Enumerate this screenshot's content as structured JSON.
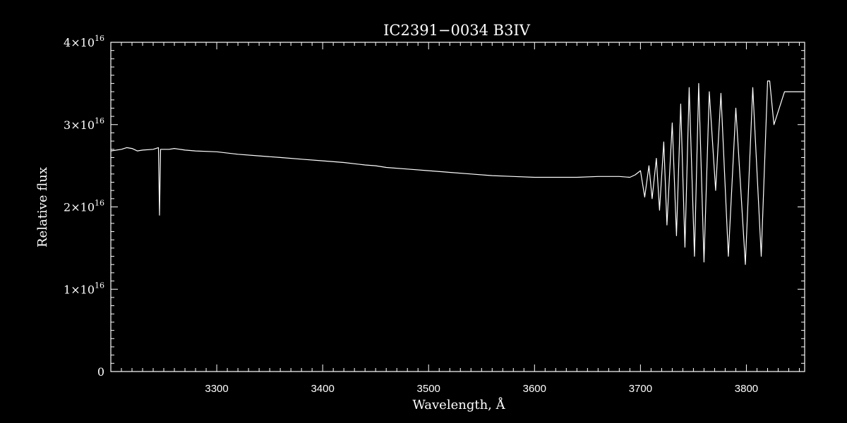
{
  "chart_data": {
    "type": "line",
    "title": "IC2391−0034   B3IV",
    "xlabel": "Wavelength, Å",
    "ylabel": "Relative flux",
    "xlim": [
      3200,
      3855
    ],
    "ylim": [
      0,
      4e+16
    ],
    "x_ticks": [
      3300,
      3400,
      3500,
      3600,
      3700,
      3800
    ],
    "x_tick_labels": [
      "3300",
      "3400",
      "3500",
      "3600",
      "3700",
      "3800"
    ],
    "y_ticks": [
      0,
      1e+16,
      2e+16,
      3e+16,
      4e+16
    ],
    "y_tick_labels": [
      {
        "mantissa": "0",
        "exp": ""
      },
      {
        "mantissa": "1×10",
        "exp": "16"
      },
      {
        "mantissa": "2×10",
        "exp": "16"
      },
      {
        "mantissa": "3×10",
        "exp": "16"
      },
      {
        "mantissa": "4×10",
        "exp": "16"
      }
    ],
    "grid": false,
    "colors": {
      "background": "#000000",
      "foreground": "#ffffff"
    },
    "series": [
      {
        "x": [
          3200,
          3210,
          3215,
          3220,
          3225,
          3230,
          3240,
          3245,
          3246,
          3247,
          3255,
          3260,
          3270,
          3280,
          3300,
          3320,
          3340,
          3360,
          3380,
          3400,
          3420,
          3440,
          3450,
          3460,
          3480,
          3500,
          3520,
          3540,
          3560,
          3580,
          3600,
          3620,
          3640,
          3660,
          3680,
          3690,
          3695,
          3700,
          3704,
          3708,
          3711,
          3715,
          3718,
          3722,
          3725,
          3730,
          3734,
          3738,
          3742,
          3746,
          3751,
          3755,
          3760,
          3765,
          3771,
          3776,
          3783,
          3790,
          3799,
          3806,
          3814,
          3820,
          3822,
          3826,
          3836,
          3841,
          3847,
          3851,
          3853,
          3855
        ],
        "y": [
          2.68e+16,
          2.7e+16,
          2.72e+16,
          2.71e+16,
          2.68e+16,
          2.69e+16,
          2.7e+16,
          2.72e+16,
          1.9e+16,
          2.7e+16,
          2.7e+16,
          2.71e+16,
          2.69e+16,
          2.68e+16,
          2.67e+16,
          2.64e+16,
          2.62e+16,
          2.6e+16,
          2.58e+16,
          2.56e+16,
          2.54e+16,
          2.51e+16,
          2.5e+16,
          2.48e+16,
          2.46e+16,
          2.44e+16,
          2.42e+16,
          2.4e+16,
          2.38e+16,
          2.37e+16,
          2.36e+16,
          2.36e+16,
          2.36e+16,
          2.37e+16,
          2.37e+16,
          2.36e+16,
          2.39e+16,
          2.44e+16,
          2.12e+16,
          2.5e+16,
          2.1e+16,
          2.59e+16,
          1.96e+16,
          2.79e+16,
          1.78e+16,
          3.02e+16,
          1.65e+16,
          3.25e+16,
          1.51e+16,
          3.45e+16,
          1.4e+16,
          3.5e+16,
          1.33e+16,
          3.4e+16,
          2.2e+16,
          3.38e+16,
          1.4e+16,
          3.2e+16,
          1.3e+16,
          3.45e+16,
          1.4e+16,
          3.53e+16,
          3.53e+16,
          3e+16,
          3.4e+16,
          3.4e+16,
          3.4e+16,
          3.4e+16,
          3.4e+16,
          3.4e+16
        ]
      }
    ]
  }
}
